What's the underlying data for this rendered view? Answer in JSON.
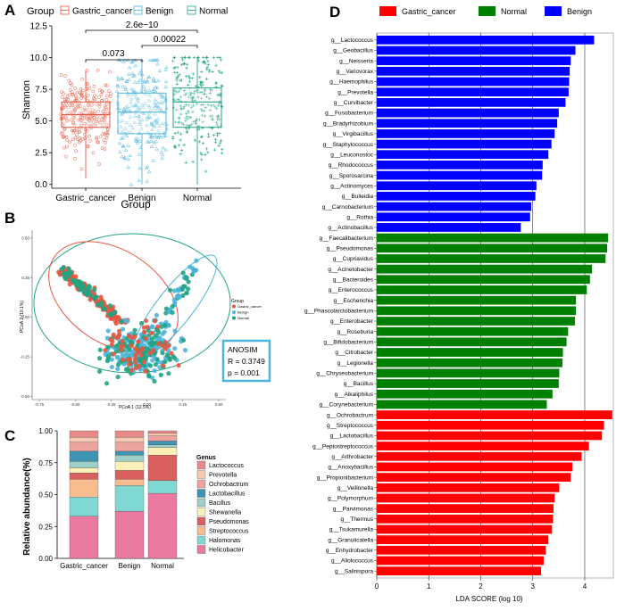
{
  "panels": {
    "a": {
      "letter": "A"
    },
    "b": {
      "letter": "B"
    },
    "c": {
      "letter": "C"
    },
    "d": {
      "letter": "D"
    }
  },
  "chart_data": [
    {
      "id": "shannon_boxplot",
      "type": "boxplot",
      "panel": "A",
      "xlabel": "Group",
      "ylabel": "Shannon",
      "legend_title": "Group",
      "categories": [
        "Gastric_cancer",
        "Benign",
        "Normal"
      ],
      "colors": [
        "#e8553f",
        "#4bb5dc",
        "#21a482"
      ],
      "ylim": [
        -0.3,
        12.5
      ],
      "yticks": [
        "0.0",
        "2.5",
        "5.0",
        "7.5",
        "10.0",
        "12.5"
      ],
      "boxes": [
        {
          "min": 0.5,
          "q1": 4.5,
          "median": 5.5,
          "q3": 6.5,
          "max": 9.0
        },
        {
          "min": 0.0,
          "q1": 4.0,
          "median": 5.7,
          "q3": 7.2,
          "max": 9.8
        },
        {
          "min": 0.0,
          "q1": 4.5,
          "median": 6.5,
          "q3": 7.6,
          "max": 10.0
        }
      ],
      "comparisons": [
        {
          "from": "Gastric_cancer",
          "to": "Benign",
          "label": "0.073"
        },
        {
          "from": "Benign",
          "to": "Normal",
          "label": "0.00022"
        },
        {
          "from": "Gastric_cancer",
          "to": "Normal",
          "label": "2.6e−10"
        }
      ]
    },
    {
      "id": "pcoa",
      "type": "scatter",
      "panel": "B",
      "xlabel": "PCoA 1 (12.5%)",
      "ylabel": "PCoA 2 (10.1%)",
      "xticks": [
        "-0.75",
        "-0.50",
        "-0.25",
        "0.00",
        "0.25",
        "0.50"
      ],
      "yticks": [
        "0.50",
        "0.25",
        "0.00",
        "-0.25",
        "-0.50"
      ],
      "xlim": [
        -0.8,
        0.55
      ],
      "ylim": [
        -0.52,
        0.55
      ],
      "legend_title": "Group",
      "legend": [
        "Gastric_cancer",
        "Benign",
        "Normal"
      ],
      "colors": [
        "#e8553f",
        "#4bb5dc",
        "#21a482"
      ],
      "anosim": {
        "title": "ANOSIM",
        "r": "R = 0.3749",
        "p": "p = 0.001"
      }
    },
    {
      "id": "genus_abundance",
      "type": "stacked_bar",
      "panel": "C",
      "ylabel": "Relative abundance(%)",
      "yticks": [
        "0.00",
        "0.25",
        "0.50",
        "0.75",
        "1.00"
      ],
      "categories": [
        "Gastric_cancer",
        "Benign",
        "Normal"
      ],
      "legend_title": "Genus",
      "genera": [
        "Lactococcus",
        "Prevotella",
        "Ochrobactrum",
        "Lactobacillus",
        "Bacillus",
        "Shewanella",
        "Pseudomonas",
        "Streptococcus",
        "Halomonas",
        "Helicobacter"
      ],
      "colors": [
        "#e88a8a",
        "#f6c8b0",
        "#eda4a0",
        "#3f94b3",
        "#9ed0c8",
        "#fbf0b8",
        "#d9605e",
        "#f7bd8f",
        "#7fd8d2",
        "#ec7aa0"
      ],
      "series": [
        {
          "name": "Helicobacter",
          "values": [
            0.33,
            0.37,
            0.51
          ]
        },
        {
          "name": "Halomonas",
          "values": [
            0.15,
            0.2,
            0.1
          ]
        },
        {
          "name": "Streptococcus",
          "values": [
            0.14,
            0.05,
            0.0
          ]
        },
        {
          "name": "Pseudomonas",
          "values": [
            0.05,
            0.07,
            0.2
          ]
        },
        {
          "name": "Shewanella",
          "values": [
            0.04,
            0.07,
            0.06
          ]
        },
        {
          "name": "Bacillus",
          "values": [
            0.05,
            0.05,
            0.02
          ]
        },
        {
          "name": "Lactobacillus",
          "values": [
            0.08,
            0.03,
            0.03
          ]
        },
        {
          "name": "Ochrobactrum",
          "values": [
            0.07,
            0.07,
            0.04
          ]
        },
        {
          "name": "Prevotella",
          "values": [
            0.04,
            0.04,
            0.02
          ]
        },
        {
          "name": "Lactococcus",
          "values": [
            0.05,
            0.05,
            0.02
          ]
        }
      ]
    },
    {
      "id": "lefse_lda",
      "type": "bar",
      "orientation": "horizontal",
      "panel": "D",
      "xlabel": "LDA SCORE (log 10)",
      "xticks": [
        "0",
        "1",
        "2",
        "3",
        "4"
      ],
      "xlim": [
        0,
        4.55
      ],
      "legend": [
        {
          "name": "Gastric_cancer",
          "color": "#ff0000"
        },
        {
          "name": "Normal",
          "color": "#008000"
        },
        {
          "name": "Benign",
          "color": "#0000ff"
        }
      ],
      "bars": [
        {
          "label": "g__Lactococcus",
          "value": 4.18,
          "group": "Benign"
        },
        {
          "label": "g__Geobacillus",
          "value": 3.82,
          "group": "Benign"
        },
        {
          "label": "g__Neisseria",
          "value": 3.73,
          "group": "Benign"
        },
        {
          "label": "g__Variovorax",
          "value": 3.71,
          "group": "Benign"
        },
        {
          "label": "g__Haemophilus",
          "value": 3.7,
          "group": "Benign"
        },
        {
          "label": "g__Prevotella",
          "value": 3.69,
          "group": "Benign"
        },
        {
          "label": "g__Curvibacter",
          "value": 3.63,
          "group": "Benign"
        },
        {
          "label": "g__Fusobacterium",
          "value": 3.5,
          "group": "Benign"
        },
        {
          "label": "g__Bradyrhizobium",
          "value": 3.47,
          "group": "Benign"
        },
        {
          "label": "g__Virgibacillus",
          "value": 3.42,
          "group": "Benign"
        },
        {
          "label": "g__Staphylococcus",
          "value": 3.36,
          "group": "Benign"
        },
        {
          "label": "g__Leuconostoc",
          "value": 3.3,
          "group": "Benign"
        },
        {
          "label": "g__Rhodococcus",
          "value": 3.19,
          "group": "Benign"
        },
        {
          "label": "g__Sporosarcina",
          "value": 3.18,
          "group": "Benign"
        },
        {
          "label": "g__Actinomyces",
          "value": 3.07,
          "group": "Benign"
        },
        {
          "label": "g__Bulleidia",
          "value": 3.05,
          "group": "Benign"
        },
        {
          "label": "g__Carnobacterium",
          "value": 2.97,
          "group": "Benign"
        },
        {
          "label": "g__Rothia",
          "value": 2.95,
          "group": "Benign"
        },
        {
          "label": "g__Actinobacillus",
          "value": 2.77,
          "group": "Benign"
        },
        {
          "label": "g__Faecalibacterium",
          "value": 4.45,
          "group": "Normal"
        },
        {
          "label": "g__Pseudomonas",
          "value": 4.43,
          "group": "Normal"
        },
        {
          "label": "g__Cupriavidus",
          "value": 4.4,
          "group": "Normal"
        },
        {
          "label": "g__Acinetobacter",
          "value": 4.14,
          "group": "Normal"
        },
        {
          "label": "g__Bacteroides",
          "value": 4.1,
          "group": "Normal"
        },
        {
          "label": "g__Enterococcus",
          "value": 4.04,
          "group": "Normal"
        },
        {
          "label": "g__Escherichia",
          "value": 3.83,
          "group": "Normal"
        },
        {
          "label": "g__Phascolarctobacterium",
          "value": 3.83,
          "group": "Normal"
        },
        {
          "label": "g__Enterobacter",
          "value": 3.81,
          "group": "Normal"
        },
        {
          "label": "g__Roseburia",
          "value": 3.68,
          "group": "Normal"
        },
        {
          "label": "g__Bifidobacterium",
          "value": 3.65,
          "group": "Normal"
        },
        {
          "label": "g__Citrobacter",
          "value": 3.58,
          "group": "Normal"
        },
        {
          "label": "g__Legionella",
          "value": 3.57,
          "group": "Normal"
        },
        {
          "label": "g__Chryseobacterium",
          "value": 3.51,
          "group": "Normal"
        },
        {
          "label": "g__Bacillus",
          "value": 3.5,
          "group": "Normal"
        },
        {
          "label": "g__Alkaliphilus",
          "value": 3.38,
          "group": "Normal"
        },
        {
          "label": "g__Corynebacterium",
          "value": 3.27,
          "group": "Normal"
        },
        {
          "label": "g__Ochrobactrum",
          "value": 4.53,
          "group": "Gastric_cancer"
        },
        {
          "label": "g__Streptococcus",
          "value": 4.37,
          "group": "Gastric_cancer"
        },
        {
          "label": "g__Lactobacillus",
          "value": 4.33,
          "group": "Gastric_cancer"
        },
        {
          "label": "g__Peptostreptococcus",
          "value": 4.08,
          "group": "Gastric_cancer"
        },
        {
          "label": "g__Arthrobacter",
          "value": 3.94,
          "group": "Gastric_cancer"
        },
        {
          "label": "g__Anoxybacillus",
          "value": 3.76,
          "group": "Gastric_cancer"
        },
        {
          "label": "g__Propionibacterium",
          "value": 3.73,
          "group": "Gastric_cancer"
        },
        {
          "label": "g__Veillonella",
          "value": 3.51,
          "group": "Gastric_cancer"
        },
        {
          "label": "g__Polymorphum",
          "value": 3.42,
          "group": "Gastric_cancer"
        },
        {
          "label": "g__Parvimonas",
          "value": 3.4,
          "group": "Gastric_cancer"
        },
        {
          "label": "g__Thermus",
          "value": 3.39,
          "group": "Gastric_cancer"
        },
        {
          "label": "g__Tsukamurella",
          "value": 3.37,
          "group": "Gastric_cancer"
        },
        {
          "label": "g__Granulicatella",
          "value": 3.3,
          "group": "Gastric_cancer"
        },
        {
          "label": "g__Enhydrobacter",
          "value": 3.25,
          "group": "Gastric_cancer"
        },
        {
          "label": "g__Allolococcus",
          "value": 3.21,
          "group": "Gastric_cancer"
        },
        {
          "label": "g__Salinispora",
          "value": 3.16,
          "group": "Gastric_cancer"
        }
      ]
    }
  ]
}
